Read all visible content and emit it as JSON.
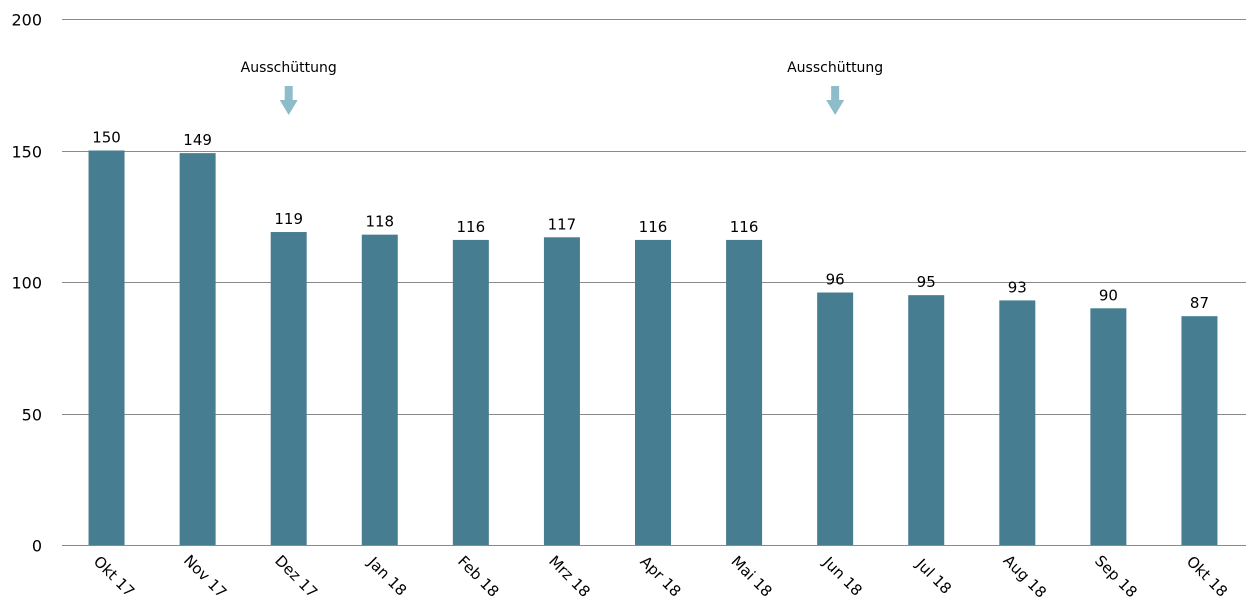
{
  "chart_data": {
    "type": "bar",
    "categories": [
      "Okt 17",
      "Nov 17",
      "Dez 17",
      "Jan 18",
      "Feb 18",
      "Mrz 18",
      "Apr 18",
      "Mai 18",
      "Jun 18",
      "Jul 18",
      "Aug 18",
      "Sep 18",
      "Okt 18"
    ],
    "values": [
      150,
      149,
      119,
      118,
      116,
      117,
      116,
      116,
      96,
      95,
      93,
      90,
      87
    ],
    "data_labels": [
      "150",
      "149",
      "119",
      "118",
      "116",
      "117",
      "116",
      "116",
      "96",
      "95",
      "93",
      "90",
      "87"
    ],
    "ylim": [
      0,
      200
    ],
    "yticks": [
      0,
      50,
      100,
      150,
      200
    ],
    "grid": true,
    "bar_color": "#467d90",
    "arrow_color": "#8fbccb",
    "annotations": [
      {
        "text": "Ausschüttung",
        "category": "Dez 17"
      },
      {
        "text": "Ausschüttung",
        "category": "Jun 18"
      }
    ]
  }
}
